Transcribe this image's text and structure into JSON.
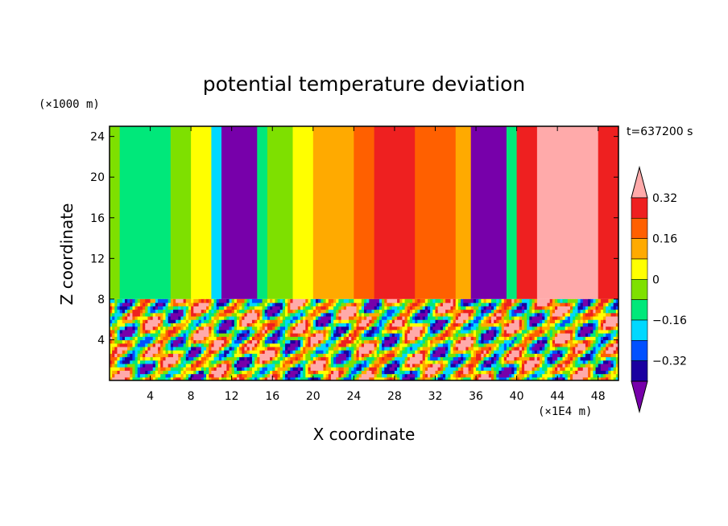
{
  "chart_data": {
    "type": "heatmap",
    "title": "potential temperature deviation",
    "xlabel": "X coordinate",
    "ylabel": "Z coordinate",
    "x_unit": "(×1E4 m)",
    "y_unit": "(×1000 m)",
    "time_label": "t=637200 s",
    "xlim": [
      0,
      50
    ],
    "ylim": [
      0,
      25
    ],
    "x_ticks": [
      4,
      8,
      12,
      16,
      20,
      24,
      28,
      32,
      36,
      40,
      44,
      48
    ],
    "y_ticks": [
      4,
      8,
      12,
      16,
      20,
      24
    ],
    "colorbar": {
      "levels": [
        -0.4,
        -0.32,
        -0.24,
        -0.16,
        -0.08,
        0,
        0.08,
        0.16,
        0.24,
        0.32,
        0.4
      ],
      "labels": [
        "0.32",
        "0.16",
        "0",
        "−0.16",
        "−0.32"
      ],
      "label_values": [
        0.32,
        0.16,
        0,
        -0.16,
        -0.32
      ],
      "colors": [
        "#7700aa",
        "#1a00a0",
        "#0050ff",
        "#00d8ff",
        "#00e87a",
        "#7ee000",
        "#ffff00",
        "#ffaa00",
        "#ff6000",
        "#ee2020",
        "#ffaaaa"
      ],
      "extend": "both"
    },
    "upper_layer_bands": [
      {
        "x": [
          0,
          1
        ],
        "value": -0.08
      },
      {
        "x": [
          1,
          6
        ],
        "value": -0.12
      },
      {
        "x": [
          6,
          8
        ],
        "value": -0.04
      },
      {
        "x": [
          8,
          10
        ],
        "value": 0.04
      },
      {
        "x": [
          10,
          11
        ],
        "value": -0.2
      },
      {
        "x": [
          11,
          14.5
        ],
        "value": -0.45
      },
      {
        "x": [
          14.5,
          15.5
        ],
        "value": -0.12
      },
      {
        "x": [
          15.5,
          18
        ],
        "value": -0.08
      },
      {
        "x": [
          18,
          20
        ],
        "value": 0.06
      },
      {
        "x": [
          20,
          24
        ],
        "value": 0.14
      },
      {
        "x": [
          24,
          26
        ],
        "value": 0.2
      },
      {
        "x": [
          26,
          30
        ],
        "value": 0.28
      },
      {
        "x": [
          30,
          34
        ],
        "value": 0.22
      },
      {
        "x": [
          34,
          35.5
        ],
        "value": 0.12
      },
      {
        "x": [
          35.5,
          39
        ],
        "value": -0.45
      },
      {
        "x": [
          39,
          40
        ],
        "value": -0.1
      },
      {
        "x": [
          40,
          42
        ],
        "value": 0.28
      },
      {
        "x": [
          42,
          48
        ],
        "value": 0.42
      },
      {
        "x": [
          48,
          50
        ],
        "value": 0.3
      }
    ]
  }
}
